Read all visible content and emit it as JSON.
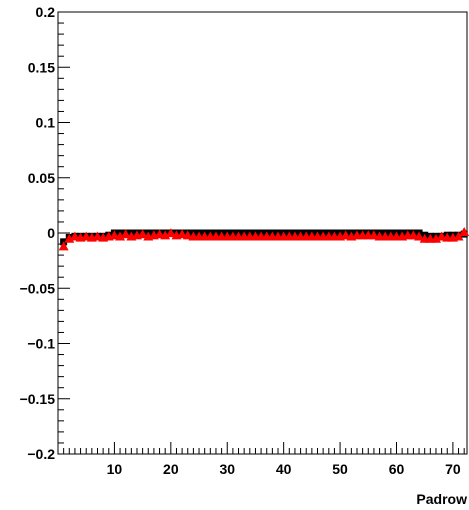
{
  "chart_data": {
    "type": "scatter",
    "title": "",
    "xlabel": "Padrow",
    "ylabel": "",
    "xlim": [
      0,
      72.5
    ],
    "ylim": [
      -0.2,
      0.2
    ],
    "grid": false,
    "legend": "none",
    "x_ticks": [
      10,
      20,
      30,
      40,
      50,
      60,
      70
    ],
    "x_tick_labels": [
      "10",
      "20",
      "30",
      "40",
      "50",
      "60",
      "70"
    ],
    "y_ticks": [
      -0.2,
      -0.15,
      -0.1,
      -0.05,
      0,
      0.05,
      0.1,
      0.15,
      0.2
    ],
    "y_tick_labels": [
      "−0.2",
      "−0.15",
      "−0.1",
      "−0.05",
      "0",
      "0.05",
      "0.1",
      "0.15",
      "0.2"
    ],
    "series": [
      {
        "color": "#000000",
        "marker": "square",
        "x": [
          1,
          2,
          3,
          4,
          5,
          6,
          7,
          8,
          9,
          10,
          11,
          12,
          13,
          14,
          15,
          16,
          17,
          18,
          19,
          20,
          21,
          22,
          23,
          24,
          25,
          26,
          27,
          28,
          29,
          30,
          31,
          32,
          33,
          34,
          35,
          36,
          37,
          38,
          39,
          40,
          41,
          42,
          43,
          44,
          45,
          46,
          47,
          48,
          49,
          50,
          51,
          52,
          53,
          54,
          55,
          56,
          57,
          58,
          59,
          60,
          61,
          62,
          63,
          64,
          65,
          66,
          67,
          68,
          69,
          70,
          71,
          72
        ],
        "y": [
          -0.008,
          -0.004,
          -0.003,
          -0.003,
          -0.003,
          -0.003,
          -0.003,
          -0.003,
          -0.002,
          0.0,
          0.0,
          0.0,
          0.0,
          0.0,
          0.0,
          0.0,
          0.0,
          0.0,
          0.0,
          0.0,
          0.0,
          0.0,
          0.0,
          0.0,
          0.0,
          0.0,
          0.0,
          0.0,
          0.0,
          0.0,
          0.0,
          0.0,
          0.0,
          0.0,
          0.0,
          0.0,
          0.0,
          0.0,
          0.0,
          0.0,
          0.0,
          0.0,
          0.0,
          0.0,
          0.0,
          0.0,
          0.0,
          0.0,
          0.0,
          0.0,
          0.0,
          0.0,
          0.0,
          0.0,
          0.0,
          0.0,
          0.0,
          0.0,
          0.0,
          0.0,
          0.0,
          0.0,
          0.0,
          0.0,
          -0.002,
          -0.003,
          -0.003,
          -0.003,
          -0.002,
          -0.002,
          -0.002,
          -0.001
        ]
      },
      {
        "color": "#ff0000",
        "marker": "triangle",
        "x": [
          1,
          2,
          3,
          4,
          5,
          6,
          7,
          8,
          9,
          10,
          11,
          12,
          13,
          14,
          15,
          16,
          17,
          18,
          19,
          20,
          21,
          22,
          23,
          24,
          25,
          26,
          27,
          28,
          29,
          30,
          31,
          32,
          33,
          34,
          35,
          36,
          37,
          38,
          39,
          40,
          41,
          42,
          43,
          44,
          45,
          46,
          47,
          48,
          49,
          50,
          51,
          52,
          53,
          54,
          55,
          56,
          57,
          58,
          59,
          60,
          61,
          62,
          63,
          64,
          65,
          66,
          67,
          68,
          69,
          70,
          71,
          72
        ],
        "y": [
          -0.013,
          -0.006,
          -0.004,
          -0.005,
          -0.004,
          -0.005,
          -0.004,
          -0.005,
          -0.004,
          -0.003,
          -0.004,
          -0.002,
          -0.004,
          -0.003,
          -0.002,
          -0.004,
          -0.003,
          -0.002,
          -0.003,
          -0.001,
          -0.003,
          -0.002,
          -0.003,
          -0.004,
          -0.004,
          -0.004,
          -0.004,
          -0.004,
          -0.004,
          -0.004,
          -0.004,
          -0.004,
          -0.004,
          -0.004,
          -0.004,
          -0.004,
          -0.004,
          -0.004,
          -0.004,
          -0.004,
          -0.004,
          -0.004,
          -0.004,
          -0.004,
          -0.004,
          -0.004,
          -0.004,
          -0.004,
          -0.004,
          -0.004,
          -0.003,
          -0.004,
          -0.003,
          -0.003,
          -0.003,
          -0.003,
          -0.004,
          -0.004,
          -0.004,
          -0.004,
          -0.004,
          -0.003,
          -0.003,
          -0.004,
          -0.006,
          -0.006,
          -0.006,
          -0.004,
          -0.005,
          -0.005,
          -0.004,
          0.0
        ]
      }
    ]
  }
}
